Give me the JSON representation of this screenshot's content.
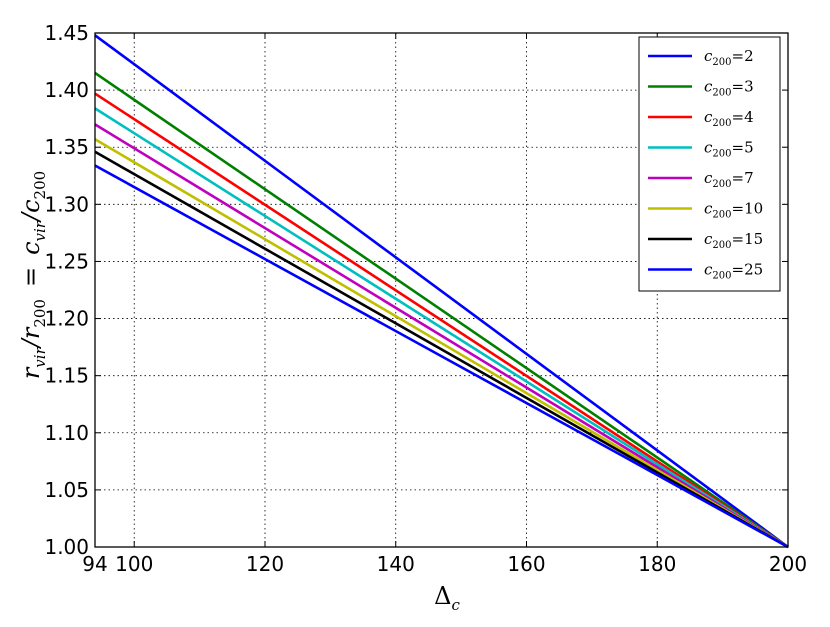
{
  "chart_data": {
    "type": "line",
    "xlabel": "Δ",
    "xlabel_sub": "c",
    "ylabel": "r",
    "ylabel_parts": {
      "lhs_main": "r",
      "lhs_sub1": "vir",
      "lhs_slash": "/",
      "lhs_main2": "r",
      "lhs_sub2": "200",
      "equals": "=",
      "rhs_main": "c",
      "rhs_sub1": "vir",
      "rhs_slash": "/",
      "rhs_main2": "c",
      "rhs_sub2": "200"
    },
    "xlim": [
      94,
      200
    ],
    "ylim": [
      1.0,
      1.45
    ],
    "xticks": [
      94,
      100,
      120,
      140,
      160,
      180,
      200
    ],
    "xtick_labels": [
      "94",
      "100",
      "120",
      "140",
      "160",
      "180",
      "200"
    ],
    "yticks": [
      1.0,
      1.05,
      1.1,
      1.15,
      1.2,
      1.25,
      1.3,
      1.35,
      1.4,
      1.45
    ],
    "ytick_labels": [
      "1.00",
      "1.05",
      "1.10",
      "1.15",
      "1.20",
      "1.25",
      "1.30",
      "1.35",
      "1.40",
      "1.45"
    ],
    "grid": true,
    "legend_position": "top-right",
    "series": [
      {
        "name": "c200=2",
        "label_main": "c",
        "label_sub": "200",
        "label_value": "=2",
        "color": "#0000ff",
        "x": [
          94,
          200
        ],
        "y": [
          1.448,
          1.0
        ]
      },
      {
        "name": "c200=3",
        "label_main": "c",
        "label_sub": "200",
        "label_value": "=3",
        "color": "#008000",
        "x": [
          94,
          200
        ],
        "y": [
          1.415,
          1.0
        ]
      },
      {
        "name": "c200=4",
        "label_main": "c",
        "label_sub": "200",
        "label_value": "=4",
        "color": "#ff0000",
        "x": [
          94,
          200
        ],
        "y": [
          1.397,
          1.0
        ]
      },
      {
        "name": "c200=5",
        "label_main": "c",
        "label_sub": "200",
        "label_value": "=5",
        "color": "#00bfbf",
        "x": [
          94,
          200
        ],
        "y": [
          1.384,
          1.0
        ]
      },
      {
        "name": "c200=7",
        "label_main": "c",
        "label_sub": "200",
        "label_value": "=7",
        "color": "#bf00bf",
        "x": [
          94,
          200
        ],
        "y": [
          1.37,
          1.0
        ]
      },
      {
        "name": "c200=10",
        "label_main": "c",
        "label_sub": "200",
        "label_value": "=10",
        "color": "#bfbf00",
        "x": [
          94,
          200
        ],
        "y": [
          1.357,
          1.0
        ]
      },
      {
        "name": "c200=15",
        "label_main": "c",
        "label_sub": "200",
        "label_value": "=15",
        "color": "#000000",
        "x": [
          94,
          200
        ],
        "y": [
          1.346,
          1.0
        ]
      },
      {
        "name": "c200=25",
        "label_main": "c",
        "label_sub": "200",
        "label_value": "=25",
        "color": "#0000ff",
        "x": [
          94,
          200
        ],
        "y": [
          1.334,
          1.0
        ]
      }
    ]
  }
}
